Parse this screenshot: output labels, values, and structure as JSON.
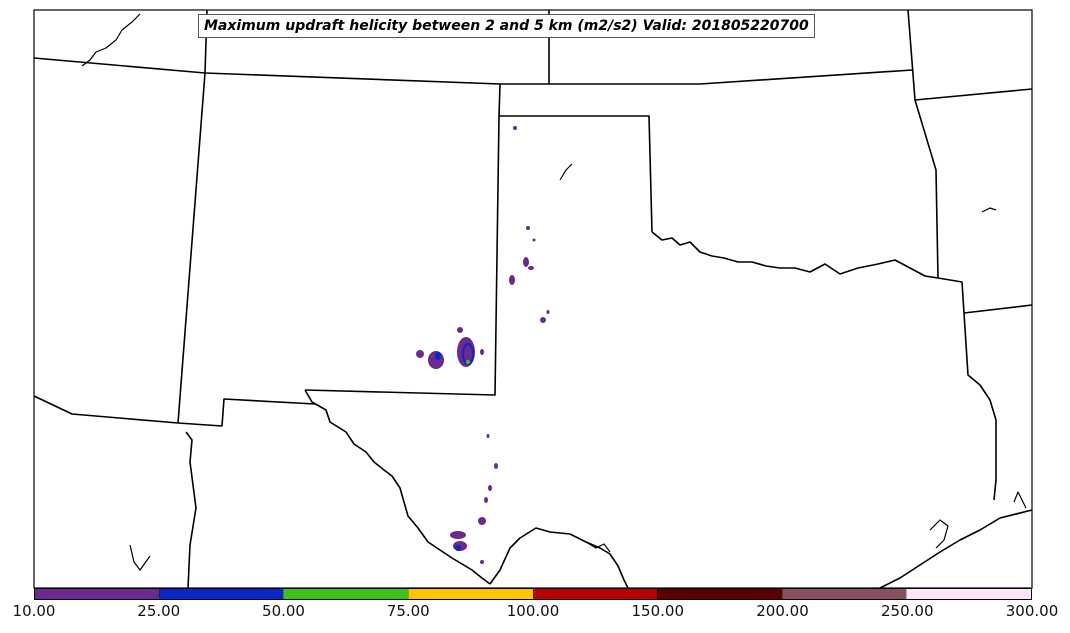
{
  "title": "Maximum updraft helicity between 2 and 5 km (m2/s2) Valid: 201805220700",
  "colorbar": {
    "ticks": [
      "10.00",
      "25.00",
      "50.00",
      "75.00",
      "100.00",
      "150.00",
      "200.00",
      "250.00",
      "300.00"
    ],
    "colors": [
      "#6a2a8e",
      "#0a28c8",
      "#3cc41a",
      "#fbc800",
      "#b80000",
      "#5a0000",
      "#8a5062",
      "#fce4fb"
    ]
  },
  "map": {
    "region": "Southern Plains (Texas, Oklahoma, New Mexico)",
    "boundary_color": "#000000",
    "background": "#ffffff"
  }
}
